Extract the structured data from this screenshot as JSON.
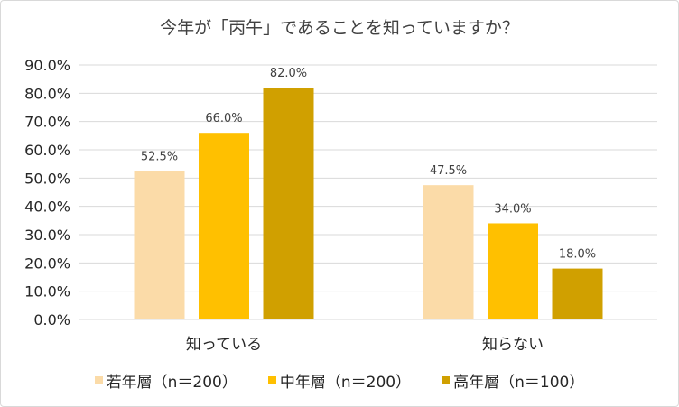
{
  "chart_data": {
    "type": "bar",
    "title": "今年が「丙午」であることを知っていますか？",
    "categories": [
      "知っている",
      "知らない"
    ],
    "series": [
      {
        "name": "若年層（n＝200）",
        "values": [
          52.5,
          47.5
        ],
        "color": "#FBDBA8"
      },
      {
        "name": "中年層（n＝200）",
        "values": [
          66.0,
          34.0
        ],
        "color": "#FFC000"
      },
      {
        "name": "高年層（n＝100）",
        "values": [
          82.0,
          18.0
        ],
        "color": "#D0A000"
      }
    ],
    "ylim": [
      0,
      90
    ],
    "yticks": [
      "0.0%",
      "10.0%",
      "20.0%",
      "30.0%",
      "40.0%",
      "50.0%",
      "60.0%",
      "70.0%",
      "80.0%",
      "90.0%"
    ],
    "data_labels": [
      [
        "52.5%",
        "47.5%"
      ],
      [
        "66.0%",
        "34.0%"
      ],
      [
        "82.0%",
        "18.0%"
      ]
    ],
    "grid": true,
    "legend": "bottom"
  }
}
